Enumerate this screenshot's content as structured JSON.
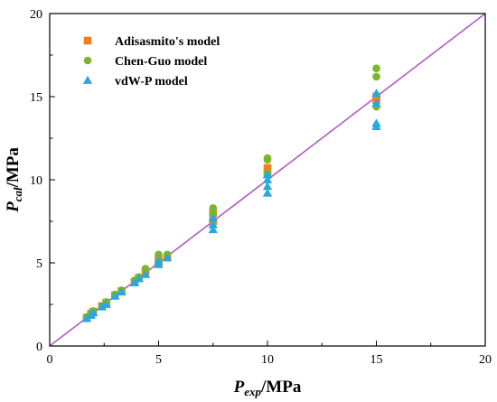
{
  "chart_data": {
    "type": "scatter",
    "title": "",
    "xlabel": {
      "main": "P",
      "sub": "exp",
      "unit": "/MPa"
    },
    "ylabel": {
      "main": "P",
      "sub": "cal",
      "unit": "/MPa"
    },
    "xlim": [
      0,
      20
    ],
    "ylim": [
      0,
      20
    ],
    "x_ticks": [
      "0",
      "5",
      "10",
      "15",
      "20"
    ],
    "y_ticks": [
      "0",
      "5",
      "10",
      "15",
      "20"
    ],
    "grid": false,
    "legend_position": "top-left",
    "reference_line": {
      "type": "y=x",
      "color": "#b05cc6"
    },
    "series": [
      {
        "name": "Adisasmito's model",
        "marker": "square",
        "color": "#f07f22",
        "points": [
          [
            1.7,
            1.7
          ],
          [
            1.9,
            1.95
          ],
          [
            2.0,
            2.05
          ],
          [
            2.4,
            2.4
          ],
          [
            2.6,
            2.6
          ],
          [
            3.0,
            3.05
          ],
          [
            3.3,
            3.3
          ],
          [
            3.9,
            3.85
          ],
          [
            4.1,
            4.1
          ],
          [
            4.4,
            4.5
          ],
          [
            5.0,
            5.0
          ],
          [
            5.0,
            5.2
          ],
          [
            5.4,
            5.35
          ],
          [
            7.5,
            7.5
          ],
          [
            7.5,
            8.0
          ],
          [
            10.0,
            10.4
          ],
          [
            10.0,
            10.7
          ],
          [
            15.0,
            14.8
          ],
          [
            15.0,
            15.0
          ]
        ]
      },
      {
        "name": "Chen-Guo model",
        "marker": "circle",
        "color": "#7cb62a",
        "points": [
          [
            1.7,
            1.75
          ],
          [
            1.9,
            1.95
          ],
          [
            2.0,
            2.1
          ],
          [
            2.4,
            2.4
          ],
          [
            2.6,
            2.65
          ],
          [
            3.0,
            3.1
          ],
          [
            3.3,
            3.35
          ],
          [
            3.9,
            3.95
          ],
          [
            4.1,
            4.15
          ],
          [
            4.4,
            4.65
          ],
          [
            5.0,
            5.1
          ],
          [
            5.0,
            5.5
          ],
          [
            5.4,
            5.5
          ],
          [
            7.5,
            7.9
          ],
          [
            7.5,
            8.3
          ],
          [
            10.0,
            10.4
          ],
          [
            10.0,
            11.2
          ],
          [
            10.0,
            11.3
          ],
          [
            15.0,
            14.4
          ],
          [
            15.0,
            16.2
          ],
          [
            15.0,
            16.7
          ]
        ]
      },
      {
        "name": "vdW-P model",
        "marker": "triangle",
        "color": "#2aa7df",
        "points": [
          [
            1.7,
            1.65
          ],
          [
            1.9,
            1.85
          ],
          [
            2.0,
            2.0
          ],
          [
            2.4,
            2.35
          ],
          [
            2.6,
            2.5
          ],
          [
            3.0,
            3.0
          ],
          [
            3.3,
            3.25
          ],
          [
            3.9,
            3.8
          ],
          [
            4.1,
            4.05
          ],
          [
            4.4,
            4.3
          ],
          [
            5.0,
            4.9
          ],
          [
            5.0,
            5.1
          ],
          [
            5.4,
            5.3
          ],
          [
            7.5,
            7.0
          ],
          [
            7.5,
            7.3
          ],
          [
            7.5,
            7.7
          ],
          [
            10.0,
            9.2
          ],
          [
            10.0,
            9.6
          ],
          [
            10.0,
            10.0
          ],
          [
            10.0,
            10.3
          ],
          [
            15.0,
            13.2
          ],
          [
            15.0,
            13.4
          ],
          [
            15.0,
            14.6
          ],
          [
            15.0,
            15.2
          ]
        ]
      }
    ]
  }
}
